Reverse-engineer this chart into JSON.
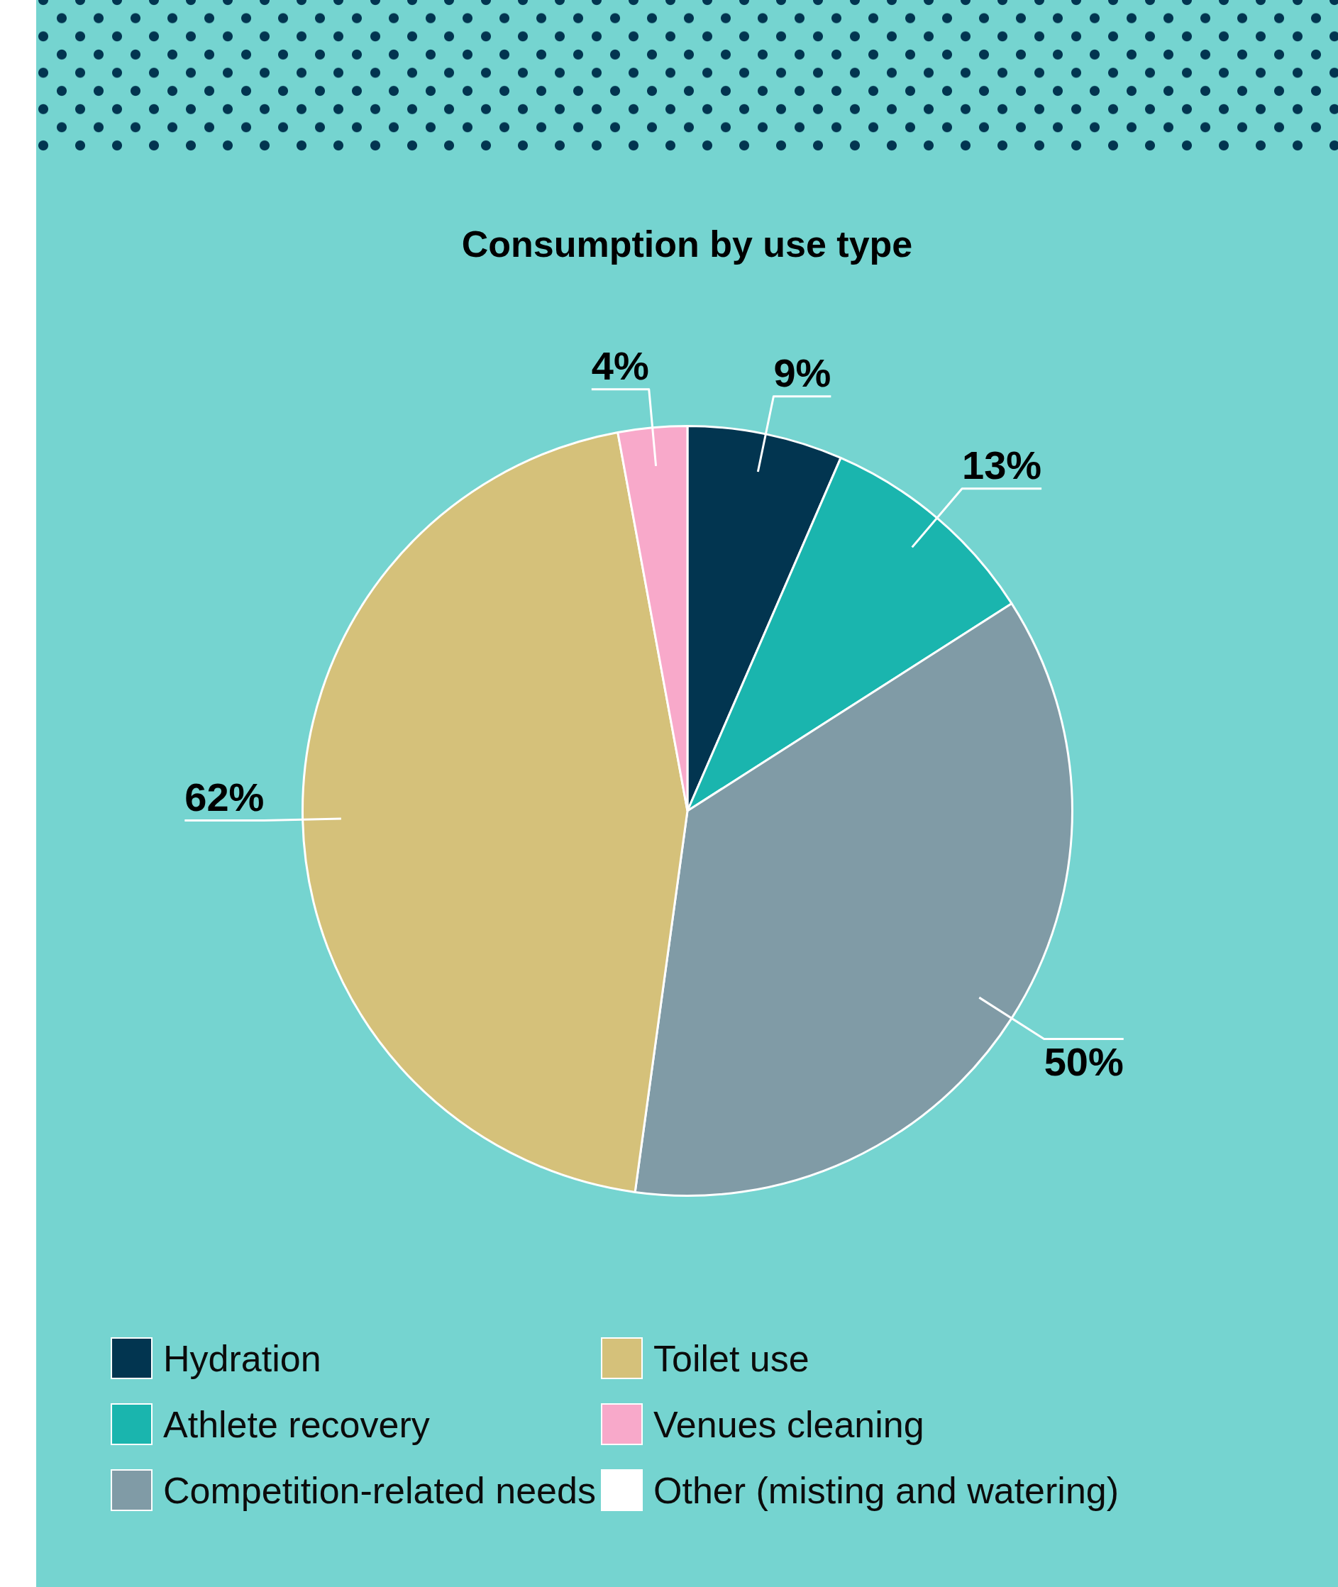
{
  "chart_data": {
    "type": "pie",
    "title": "Consumption by use type",
    "categories": [
      "Hydration",
      "Athlete recovery",
      "Competition-related needs",
      "Toilet use",
      "Venues cleaning",
      "Other (misting and watering)"
    ],
    "values": [
      9,
      13,
      50,
      62,
      4,
      null
    ],
    "colors": [
      "#023550",
      "#1ab5ae",
      "#809ba6",
      "#d5c17a",
      "#f8a9ca",
      "#ffffff"
    ],
    "value_labels": [
      "9%",
      "13%",
      "50%",
      "62%",
      "4%",
      null
    ],
    "legend": "bottom"
  }
}
